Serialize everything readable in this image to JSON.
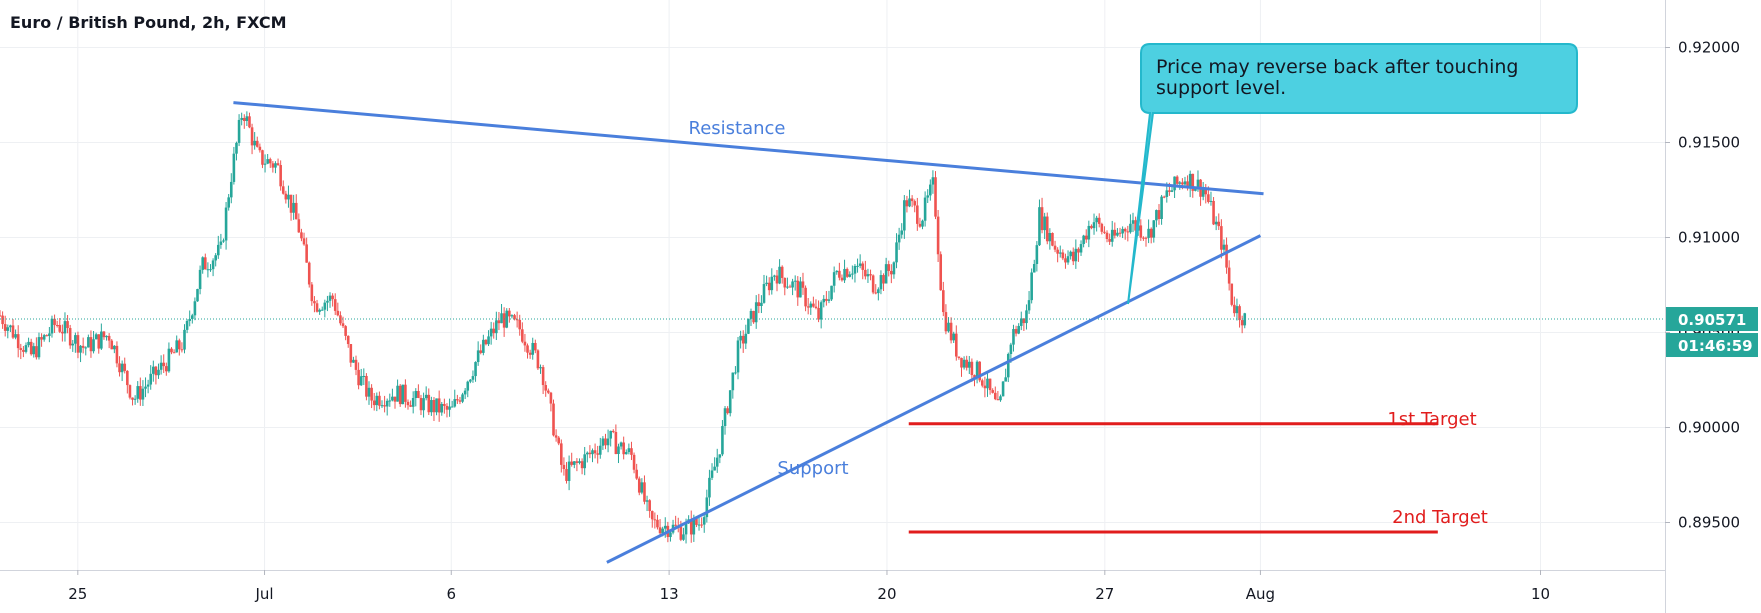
{
  "chart_data": {
    "type": "candlestick",
    "title": "Euro / British Pound, 2h, FXCM",
    "ylim": [
      0.8925,
      0.9225
    ],
    "y_ticks": [
      "0.92000",
      "0.91500",
      "0.91000",
      "0.90500",
      "0.90000",
      "0.89500"
    ],
    "y_tick_values": [
      0.92,
      0.915,
      0.91,
      0.905,
      0.9,
      0.895
    ],
    "x_tick_labels": [
      "25",
      "Jul",
      "6",
      "13",
      "20",
      "27",
      "Aug",
      "10"
    ],
    "x_tick_days": [
      25,
      31,
      37,
      44,
      51,
      58,
      63,
      72
    ],
    "x_range_days": [
      22.5,
      76.0
    ],
    "current_price": 0.90571,
    "current_price_label": "0.90571",
    "countdown_label": "01:46:59",
    "colors": {
      "up": "#26a69a",
      "down": "#ef5350",
      "trendline": "#4a7fdc",
      "target": "#e11d1d",
      "callout_fill": "#4dd0e1",
      "badge": "#26a69a",
      "grid": "#eef0f3"
    },
    "anchors": [
      [
        22.5,
        0.9059
      ],
      [
        23.5,
        0.9038
      ],
      [
        24.3,
        0.9055
      ],
      [
        25.2,
        0.9042
      ],
      [
        26.0,
        0.9049
      ],
      [
        26.8,
        0.9015
      ],
      [
        27.5,
        0.9028
      ],
      [
        28.4,
        0.9045
      ],
      [
        29.0,
        0.9085
      ],
      [
        29.6,
        0.9093
      ],
      [
        29.9,
        0.913
      ],
      [
        30.3,
        0.9168
      ],
      [
        30.8,
        0.9142
      ],
      [
        31.4,
        0.9138
      ],
      [
        32.1,
        0.9105
      ],
      [
        32.6,
        0.9065
      ],
      [
        33.2,
        0.9068
      ],
      [
        33.8,
        0.9035
      ],
      [
        34.4,
        0.9015
      ],
      [
        35.3,
        0.9018
      ],
      [
        36.2,
        0.9012
      ],
      [
        37.0,
        0.9008
      ],
      [
        37.8,
        0.9035
      ],
      [
        38.6,
        0.9058
      ],
      [
        39.2,
        0.9052
      ],
      [
        39.9,
        0.9032
      ],
      [
        40.6,
        0.8975
      ],
      [
        41.4,
        0.8985
      ],
      [
        42.0,
        0.8995
      ],
      [
        42.8,
        0.8985
      ],
      [
        43.4,
        0.895
      ],
      [
        44.4,
        0.8946
      ],
      [
        45.0,
        0.895
      ],
      [
        45.6,
        0.8988
      ],
      [
        46.2,
        0.904
      ],
      [
        46.8,
        0.9063
      ],
      [
        47.4,
        0.9082
      ],
      [
        48.2,
        0.9072
      ],
      [
        48.8,
        0.9058
      ],
      [
        49.4,
        0.9082
      ],
      [
        50.0,
        0.9085
      ],
      [
        50.6,
        0.9075
      ],
      [
        51.2,
        0.9085
      ],
      [
        51.6,
        0.912
      ],
      [
        52.1,
        0.911
      ],
      [
        52.5,
        0.9128
      ],
      [
        52.8,
        0.906
      ],
      [
        53.3,
        0.9038
      ],
      [
        54.0,
        0.9028
      ],
      [
        54.6,
        0.9008
      ],
      [
        55.0,
        0.9048
      ],
      [
        55.5,
        0.906
      ],
      [
        55.9,
        0.9112
      ],
      [
        56.4,
        0.9095
      ],
      [
        57.0,
        0.9088
      ],
      [
        57.6,
        0.911
      ],
      [
        58.2,
        0.9098
      ],
      [
        58.8,
        0.9108
      ],
      [
        59.4,
        0.9102
      ],
      [
        60.0,
        0.9123
      ],
      [
        60.6,
        0.9132
      ],
      [
        61.2,
        0.9125
      ],
      [
        61.8,
        0.9095
      ],
      [
        62.1,
        0.9065
      ],
      [
        62.5,
        0.9057
      ]
    ],
    "annotations": [
      {
        "text": "Resistance",
        "color": "#4a7fdc"
      },
      {
        "text": "Support",
        "color": "#4a7fdc"
      },
      {
        "text": "1st Target",
        "color": "#e11d1d"
      },
      {
        "text": "2nd Target",
        "color": "#e11d1d"
      }
    ],
    "lines": {
      "resistance": {
        "from": [
          30.0,
          0.9171
        ],
        "to": [
          63.1,
          0.9123
        ]
      },
      "support": {
        "from": [
          42.0,
          0.8929
        ],
        "to": [
          63.0,
          0.9101
        ]
      },
      "target1": {
        "from": [
          51.7,
          0.9002
        ],
        "to": [
          68.7,
          0.9002
        ],
        "label": "1st Target"
      },
      "target2": {
        "from": [
          51.7,
          0.8945
        ],
        "to": [
          68.7,
          0.8945
        ],
        "label": "2nd Target"
      }
    },
    "callout": {
      "text_line1": "Price may reverse back after touching",
      "text_line2": "support level."
    }
  }
}
